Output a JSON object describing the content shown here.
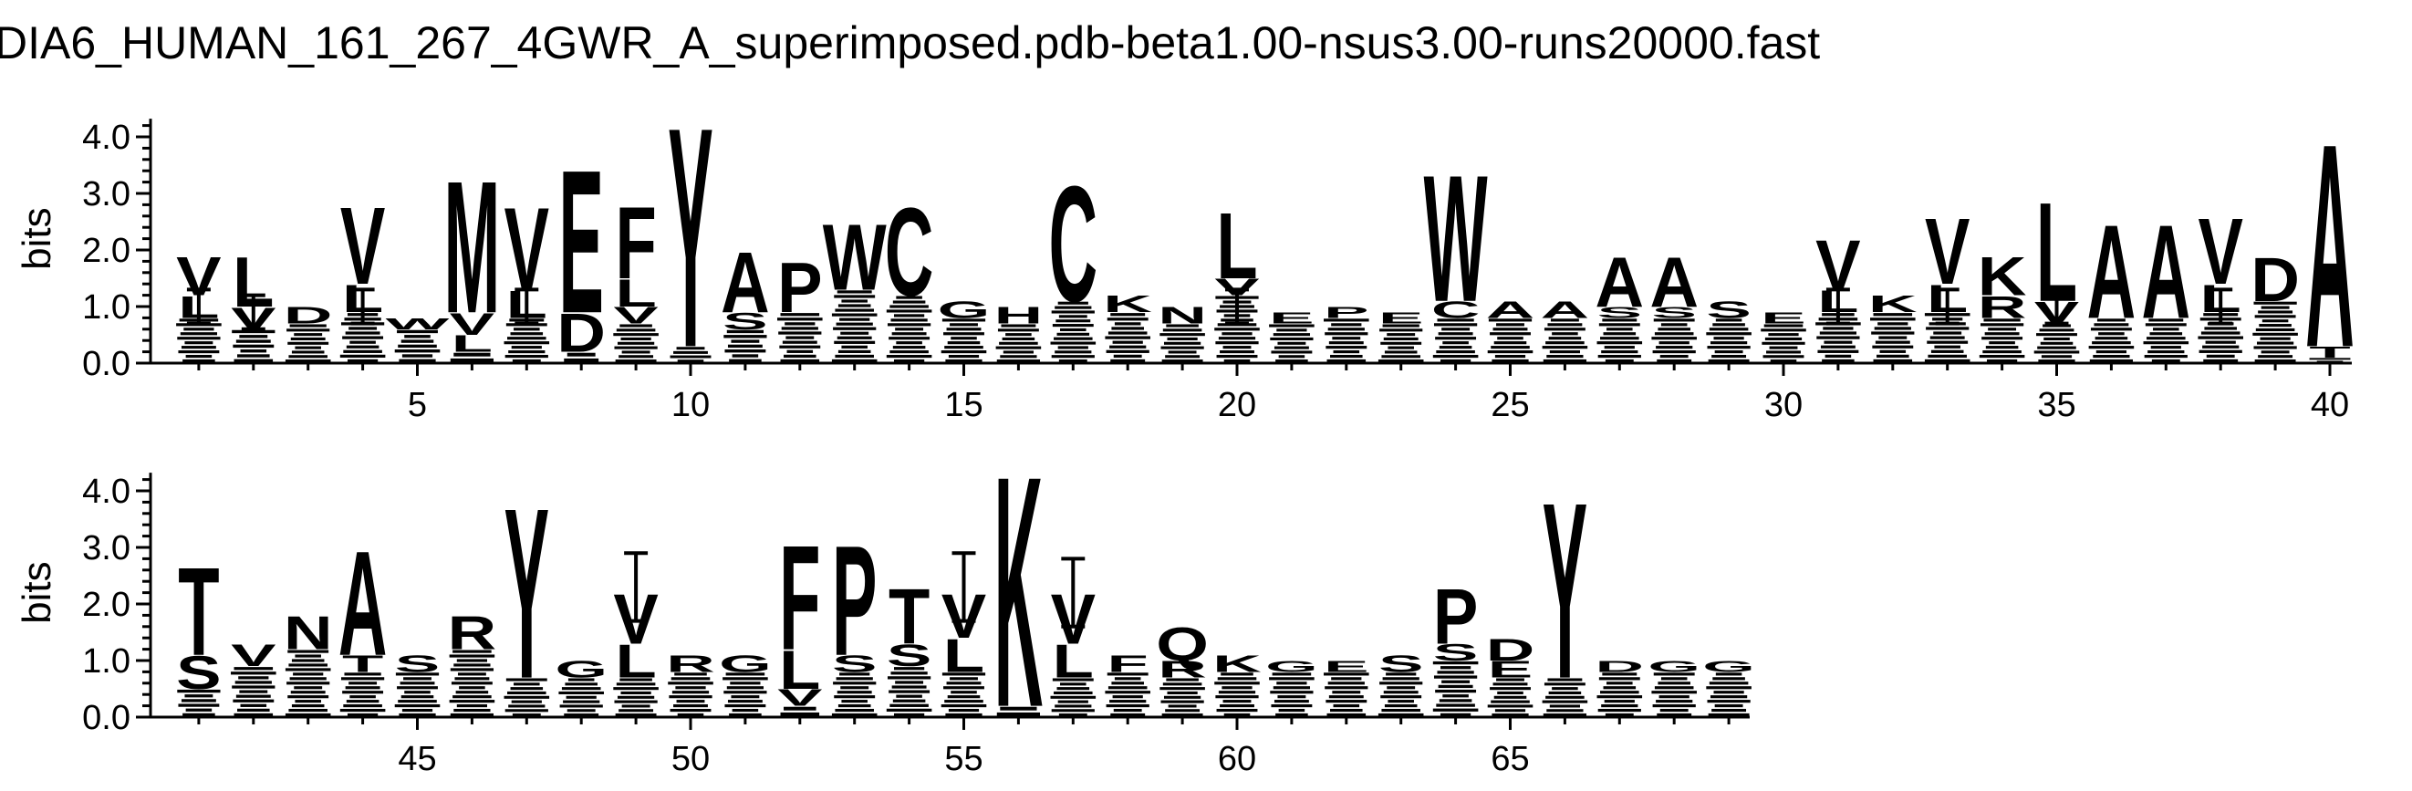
{
  "chart_data": {
    "type": "sequence-logo",
    "title": "DIA6_HUMAN_161_267_4GWR_A_superimposed.pdb-beta1.00-nsus3.00-runs20000.fast",
    "ylabel": "bits",
    "ylim": [
      0,
      4.32
    ],
    "yticks": [
      "0.0",
      "1.0",
      "2.0",
      "3.0",
      "4.0"
    ],
    "grid": false,
    "panels": [
      {
        "start": 1,
        "end": 40,
        "xticks": [
          5,
          10,
          15,
          20,
          25,
          30,
          35,
          40
        ],
        "positions": [
          {
            "pos": 1,
            "total": 1.9,
            "letters": [
              {
                "c": "V",
                "h": 0.7
              },
              {
                "c": "L",
                "h": 0.4
              }
            ],
            "err": 1.3
          },
          {
            "pos": 2,
            "total": 1.9,
            "letters": [
              {
                "c": "L",
                "h": 0.9
              },
              {
                "c": "V",
                "h": 0.4
              }
            ],
            "err": 1.2
          },
          {
            "pos": 3,
            "total": 1.0,
            "letters": [
              {
                "c": "D",
                "h": 0.3
              }
            ],
            "err": null
          },
          {
            "pos": 4,
            "total": 2.8,
            "letters": [
              {
                "c": "V",
                "h": 1.4
              },
              {
                "c": "L",
                "h": 0.5
              }
            ],
            "err": 1.3
          },
          {
            "pos": 5,
            "total": 0.8,
            "letters": [
              {
                "c": "W",
                "h": 0.2
              }
            ],
            "err": null
          },
          {
            "pos": 6,
            "total": 3.3,
            "letters": [
              {
                "c": "M",
                "h": 2.4
              },
              {
                "c": "V",
                "h": 0.4
              },
              {
                "c": "L",
                "h": 0.3
              }
            ],
            "err": null
          },
          {
            "pos": 7,
            "total": 2.8,
            "letters": [
              {
                "c": "V",
                "h": 1.5
              },
              {
                "c": "L",
                "h": 0.5
              }
            ],
            "err": 1.3
          },
          {
            "pos": 8,
            "total": 3.5,
            "letters": [
              {
                "c": "E",
                "h": 2.6
              },
              {
                "c": "D",
                "h": 0.7
              }
            ],
            "err": null
          },
          {
            "pos": 9,
            "total": 2.8,
            "letters": [
              {
                "c": "F",
                "h": 1.3
              },
              {
                "c": "L",
                "h": 0.5
              },
              {
                "c": "V",
                "h": 0.3
              }
            ],
            "err": null
          },
          {
            "pos": 10,
            "total": 4.3,
            "letters": [
              {
                "c": "Y",
                "h": 4.0
              }
            ],
            "err": null
          },
          {
            "pos": 11,
            "total": 2.0,
            "letters": [
              {
                "c": "A",
                "h": 1.1
              },
              {
                "c": "S",
                "h": 0.3
              }
            ],
            "err": null
          },
          {
            "pos": 12,
            "total": 1.8,
            "letters": [
              {
                "c": "P",
                "h": 0.9
              }
            ],
            "err": null
          },
          {
            "pos": 13,
            "total": 2.5,
            "letters": [
              {
                "c": "W",
                "h": 1.2
              }
            ],
            "err": null
          },
          {
            "pos": 14,
            "total": 2.8,
            "letters": [
              {
                "c": "C",
                "h": 1.6
              }
            ],
            "err": null
          },
          {
            "pos": 15,
            "total": 1.1,
            "letters": [
              {
                "c": "G",
                "h": 0.3
              }
            ],
            "err": null
          },
          {
            "pos": 16,
            "total": 1.0,
            "letters": [
              {
                "c": "H",
                "h": 0.3
              }
            ],
            "err": null
          },
          {
            "pos": 17,
            "total": 3.2,
            "letters": [
              {
                "c": "C",
                "h": 2.1
              }
            ],
            "err": null
          },
          {
            "pos": 18,
            "total": 1.2,
            "letters": [
              {
                "c": "K",
                "h": 0.3
              }
            ],
            "err": null
          },
          {
            "pos": 19,
            "total": 1.0,
            "letters": [
              {
                "c": "N",
                "h": 0.3
              }
            ],
            "err": null
          },
          {
            "pos": 20,
            "total": 2.7,
            "letters": [
              {
                "c": "L",
                "h": 1.2
              },
              {
                "c": "V",
                "h": 0.3
              }
            ],
            "err": 1.3
          },
          {
            "pos": 21,
            "total": 0.9,
            "letters": [
              {
                "c": "E",
                "h": 0.2
              }
            ],
            "err": null
          },
          {
            "pos": 22,
            "total": 1.0,
            "letters": [
              {
                "c": "P",
                "h": 0.2
              }
            ],
            "err": null
          },
          {
            "pos": 23,
            "total": 0.9,
            "letters": [
              {
                "c": "E",
                "h": 0.2
              }
            ],
            "err": null
          },
          {
            "pos": 24,
            "total": 3.4,
            "letters": [
              {
                "c": "W",
                "h": 2.3
              },
              {
                "c": "C",
                "h": 0.3
              }
            ],
            "err": null
          },
          {
            "pos": 25,
            "total": 1.1,
            "letters": [
              {
                "c": "A",
                "h": 0.3
              }
            ],
            "err": null
          },
          {
            "pos": 26,
            "total": 1.1,
            "letters": [
              {
                "c": "A",
                "h": 0.3
              }
            ],
            "err": null
          },
          {
            "pos": 27,
            "total": 1.9,
            "letters": [
              {
                "c": "A",
                "h": 0.9
              },
              {
                "c": "S",
                "h": 0.2
              }
            ],
            "err": null
          },
          {
            "pos": 28,
            "total": 1.9,
            "letters": [
              {
                "c": "A",
                "h": 0.9
              },
              {
                "c": "S",
                "h": 0.2
              }
            ],
            "err": null
          },
          {
            "pos": 29,
            "total": 1.1,
            "letters": [
              {
                "c": "S",
                "h": 0.3
              }
            ],
            "err": null
          },
          {
            "pos": 30,
            "total": 0.9,
            "letters": [
              {
                "c": "E",
                "h": 0.2
              }
            ],
            "err": null
          },
          {
            "pos": 31,
            "total": 2.2,
            "letters": [
              {
                "c": "V",
                "h": 0.9
              },
              {
                "c": "L",
                "h": 0.4
              }
            ],
            "err": 1.3
          },
          {
            "pos": 32,
            "total": 1.2,
            "letters": [
              {
                "c": "K",
                "h": 0.3
              }
            ],
            "err": null
          },
          {
            "pos": 33,
            "total": 2.6,
            "letters": [
              {
                "c": "V",
                "h": 1.2
              },
              {
                "c": "L",
                "h": 0.5
              }
            ],
            "err": 1.3
          },
          {
            "pos": 34,
            "total": 1.9,
            "letters": [
              {
                "c": "K",
                "h": 0.7
              },
              {
                "c": "R",
                "h": 0.4
              }
            ],
            "err": null
          },
          {
            "pos": 35,
            "total": 2.9,
            "letters": [
              {
                "c": "L",
                "h": 1.8
              },
              {
                "c": "V",
                "h": 0.4
              }
            ],
            "err": 1.3
          },
          {
            "pos": 36,
            "total": 2.5,
            "letters": [
              {
                "c": "A",
                "h": 1.7
              }
            ],
            "err": null
          },
          {
            "pos": 37,
            "total": 2.5,
            "letters": [
              {
                "c": "A",
                "h": 1.7
              }
            ],
            "err": null
          },
          {
            "pos": 38,
            "total": 2.6,
            "letters": [
              {
                "c": "V",
                "h": 1.2
              },
              {
                "c": "L",
                "h": 0.5
              }
            ],
            "err": 1.3
          },
          {
            "pos": 39,
            "total": 1.9,
            "letters": [
              {
                "c": "D",
                "h": 0.8
              }
            ],
            "err": null
          },
          {
            "pos": 40,
            "total": 4.0,
            "letters": [
              {
                "c": "A",
                "h": 3.7
              },
              {
                "c": "T",
                "h": 0.2
              }
            ],
            "err": null
          }
        ]
      },
      {
        "start": 41,
        "end": 69,
        "xticks": [
          45,
          50,
          55,
          60,
          65
        ],
        "positions": [
          {
            "pos": 41,
            "total": 2.7,
            "letters": [
              {
                "c": "T",
                "h": 1.6
              },
              {
                "c": "S",
                "h": 0.6
              }
            ],
            "err": null
          },
          {
            "pos": 42,
            "total": 1.3,
            "letters": [
              {
                "c": "V",
                "h": 0.4
              }
            ],
            "err": null
          },
          {
            "pos": 43,
            "total": 1.8,
            "letters": [
              {
                "c": "N",
                "h": 0.6
              }
            ],
            "err": null
          },
          {
            "pos": 44,
            "total": 3.0,
            "letters": [
              {
                "c": "A",
                "h": 1.9
              },
              {
                "c": "T",
                "h": 0.3
              }
            ],
            "err": null
          },
          {
            "pos": 45,
            "total": 1.1,
            "letters": [
              {
                "c": "S",
                "h": 0.3
              }
            ],
            "err": null
          },
          {
            "pos": 46,
            "total": 1.8,
            "letters": [
              {
                "c": "R",
                "h": 0.6
              }
            ],
            "err": null
          },
          {
            "pos": 47,
            "total": 3.8,
            "letters": [
              {
                "c": "Y",
                "h": 3.1
              }
            ],
            "err": null
          },
          {
            "pos": 48,
            "total": 1.0,
            "letters": [
              {
                "c": "G",
                "h": 0.3
              }
            ],
            "err": null
          },
          {
            "pos": 49,
            "total": 2.2,
            "letters": [
              {
                "c": "V",
                "h": 0.9
              },
              {
                "c": "L",
                "h": 0.6
              }
            ],
            "err": 2.9
          },
          {
            "pos": 50,
            "total": 1.1,
            "letters": [
              {
                "c": "R",
                "h": 0.3
              }
            ],
            "err": null
          },
          {
            "pos": 51,
            "total": 1.1,
            "letters": [
              {
                "c": "G",
                "h": 0.3
              }
            ],
            "err": null
          },
          {
            "pos": 52,
            "total": 3.1,
            "letters": [
              {
                "c": "F",
                "h": 1.9
              },
              {
                "c": "L",
                "h": 0.7
              },
              {
                "c": "V",
                "h": 0.3
              }
            ],
            "err": null
          },
          {
            "pos": 53,
            "total": 3.1,
            "letters": [
              {
                "c": "P",
                "h": 2.0
              },
              {
                "c": "S",
                "h": 0.3
              }
            ],
            "err": null
          },
          {
            "pos": 54,
            "total": 2.3,
            "letters": [
              {
                "c": "T",
                "h": 1.0
              },
              {
                "c": "S",
                "h": 0.4
              }
            ],
            "err": null
          },
          {
            "pos": 55,
            "total": 2.2,
            "letters": [
              {
                "c": "V",
                "h": 0.8
              },
              {
                "c": "L",
                "h": 0.6
              }
            ],
            "err": 2.9
          },
          {
            "pos": 56,
            "total": 4.4,
            "letters": [
              {
                "c": "K",
                "h": 4.2
              }
            ],
            "err": null
          },
          {
            "pos": 57,
            "total": 2.2,
            "letters": [
              {
                "c": "V",
                "h": 0.9
              },
              {
                "c": "L",
                "h": 0.6
              }
            ],
            "err": 2.8
          },
          {
            "pos": 58,
            "total": 1.1,
            "letters": [
              {
                "c": "F",
                "h": 0.3
              }
            ],
            "err": null
          },
          {
            "pos": 59,
            "total": 1.6,
            "letters": [
              {
                "c": "Q",
                "h": 0.6
              },
              {
                "c": "R",
                "h": 0.3
              }
            ],
            "err": null
          },
          {
            "pos": 60,
            "total": 1.1,
            "letters": [
              {
                "c": "K",
                "h": 0.3
              }
            ],
            "err": null
          },
          {
            "pos": 61,
            "total": 1.0,
            "letters": [
              {
                "c": "G",
                "h": 0.2
              }
            ],
            "err": null
          },
          {
            "pos": 62,
            "total": 1.0,
            "letters": [
              {
                "c": "E",
                "h": 0.2
              }
            ],
            "err": null
          },
          {
            "pos": 63,
            "total": 1.1,
            "letters": [
              {
                "c": "S",
                "h": 0.3
              }
            ],
            "err": null
          },
          {
            "pos": 64,
            "total": 2.3,
            "letters": [
              {
                "c": "P",
                "h": 1.0
              },
              {
                "c": "S",
                "h": 0.3
              }
            ],
            "err": null
          },
          {
            "pos": 65,
            "total": 1.4,
            "letters": [
              {
                "c": "D",
                "h": 0.4
              },
              {
                "c": "E",
                "h": 0.3
              }
            ],
            "err": null
          },
          {
            "pos": 66,
            "total": 3.9,
            "letters": [
              {
                "c": "Y",
                "h": 3.2
              }
            ],
            "err": null
          },
          {
            "pos": 67,
            "total": 1.0,
            "letters": [
              {
                "c": "D",
                "h": 0.2
              }
            ],
            "err": null
          },
          {
            "pos": 68,
            "total": 1.0,
            "letters": [
              {
                "c": "G",
                "h": 0.2
              }
            ],
            "err": null
          },
          {
            "pos": 69,
            "total": 1.0,
            "letters": [
              {
                "c": "G",
                "h": 0.2
              }
            ],
            "err": null
          }
        ]
      }
    ]
  }
}
